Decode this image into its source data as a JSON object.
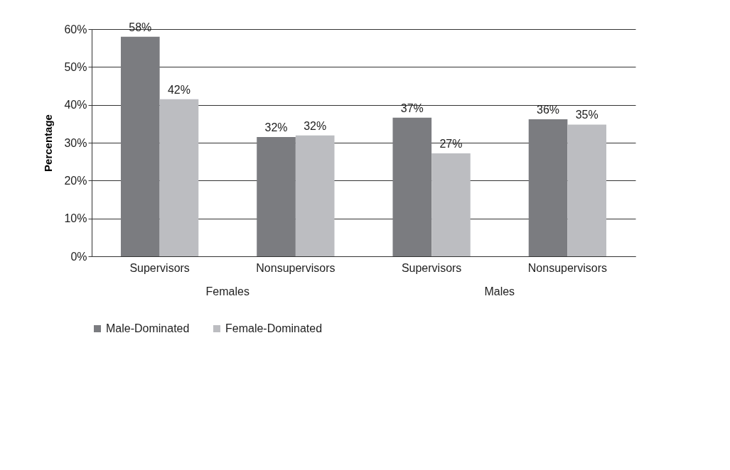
{
  "chart_data": {
    "type": "bar",
    "ylabel": "Percentage",
    "categories": [
      "Supervisors",
      "Nonsupervisors",
      "Supervisors",
      "Nonsupervisors"
    ],
    "annotations": [
      "Females",
      "Males"
    ],
    "series": [
      {
        "name": "Male-Dominated",
        "color": "#7b7c80",
        "values": [
          58.0,
          31.5,
          36.6,
          36.2
        ],
        "value_labels": [
          "58%",
          "32%",
          "37%",
          "36%"
        ]
      },
      {
        "name": "Female-Dominated",
        "color": "#bcbdc1",
        "values": [
          41.5,
          31.9,
          27.2,
          34.8
        ],
        "value_labels": [
          "42%",
          "32%",
          "27%",
          "35%"
        ]
      }
    ],
    "ylim": [
      0,
      60
    ],
    "yticks": [
      {
        "value": 0,
        "label": "0%"
      },
      {
        "value": 10,
        "label": "10%"
      },
      {
        "value": 20,
        "label": "20%"
      },
      {
        "value": 30,
        "label": "30%"
      },
      {
        "value": 40,
        "label": "40%"
      },
      {
        "value": 50,
        "label": "50%"
      },
      {
        "value": 60,
        "label": "60%"
      }
    ],
    "grid": "y",
    "legend": "bottom left"
  }
}
